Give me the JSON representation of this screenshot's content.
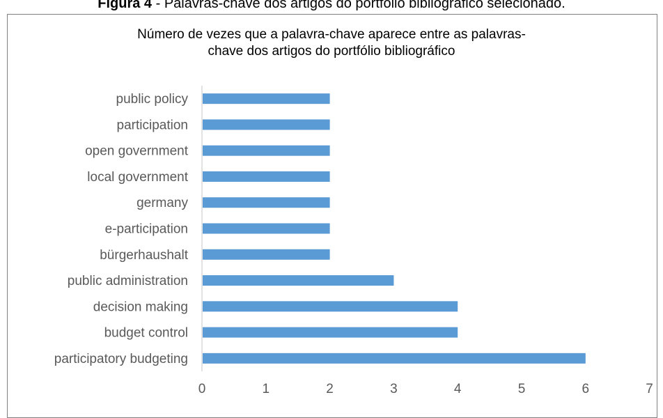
{
  "caption": {
    "bold": "Figura 4",
    "text": " - Palavras-chave dos artigos do portfólio bibliográfico selecionado."
  },
  "chart_data": {
    "type": "bar",
    "orientation": "horizontal",
    "title_lines": [
      "Número de vezes que a palavra-chave aparece entre as palavras-",
      "chave dos artigos do portfólio bibliográfico"
    ],
    "categories": [
      "public policy",
      "participation",
      "open government",
      "local government",
      "germany",
      "e-participation",
      "bürgerhaushalt",
      "public administration",
      "decision making",
      "budget control",
      "participatory budgeting"
    ],
    "values": [
      2,
      2,
      2,
      2,
      2,
      2,
      2,
      3,
      4,
      4,
      6
    ],
    "xlim": [
      0,
      7
    ],
    "xticks": [
      "0",
      "1",
      "2",
      "3",
      "4",
      "5",
      "6",
      "7"
    ],
    "bar_color": "#5b9bd5",
    "axis_color": "#d9d9d9",
    "grid": false,
    "legend": "none"
  }
}
